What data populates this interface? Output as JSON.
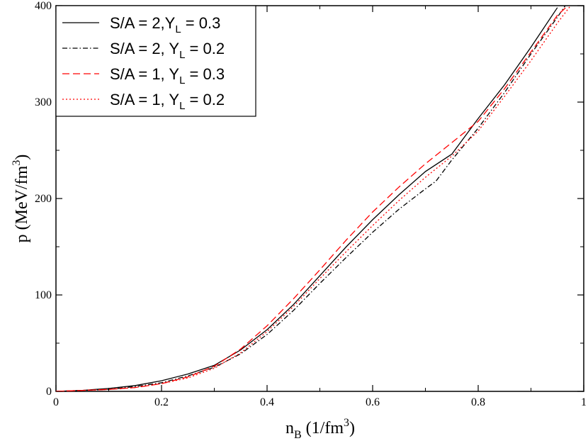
{
  "chart_data": {
    "type": "line",
    "xlabel": {
      "main": "n",
      "sub": "B",
      "rest": " (1/fm",
      "sup": "3",
      "close": ")"
    },
    "ylabel": {
      "main": "p (MeV/fm",
      "sup": "3",
      "close": ")"
    },
    "xlim": [
      0,
      1
    ],
    "ylim": [
      0,
      400
    ],
    "xticks": [
      "0",
      "0.2",
      "0.4",
      "0.6",
      "0.8",
      "1"
    ],
    "yticks": [
      "0",
      "100",
      "200",
      "300",
      "400"
    ],
    "legend_position": "top-left",
    "series": [
      {
        "legend": {
          "a": "S/A = 2,Y",
          "sub": "L",
          "b": " = 0.3"
        },
        "color": "#000000",
        "dash": "solid",
        "x": [
          0.0,
          0.05,
          0.1,
          0.15,
          0.2,
          0.25,
          0.3,
          0.35,
          0.4,
          0.45,
          0.5,
          0.55,
          0.6,
          0.65,
          0.7,
          0.75,
          0.8,
          0.85,
          0.9,
          0.95
        ],
        "y": [
          0,
          1,
          3,
          6,
          11,
          18,
          27,
          43,
          64,
          90,
          120,
          150,
          178,
          204,
          228,
          246,
          283,
          318,
          357,
          398
        ]
      },
      {
        "legend": {
          "a": "S/A = 2, Y",
          "sub": "L",
          "b": " = 0.2"
        },
        "color": "#000000",
        "dash": "dashdot",
        "x": [
          0.0,
          0.05,
          0.1,
          0.15,
          0.2,
          0.25,
          0.3,
          0.35,
          0.4,
          0.45,
          0.5,
          0.55,
          0.6,
          0.65,
          0.7,
          0.72,
          0.75,
          0.8,
          0.85,
          0.9,
          0.95,
          0.965
        ],
        "y": [
          0,
          1,
          2,
          5,
          9,
          16,
          25,
          39,
          59,
          84,
          112,
          139,
          165,
          189,
          210,
          218,
          240,
          273,
          310,
          350,
          388,
          400
        ]
      },
      {
        "legend": {
          "a": "S/A = 1, Y",
          "sub": "L",
          "b": " = 0.3"
        },
        "color": "#ff0000",
        "dash": "dashed",
        "x": [
          0.0,
          0.05,
          0.1,
          0.15,
          0.2,
          0.25,
          0.3,
          0.35,
          0.4,
          0.45,
          0.5,
          0.55,
          0.6,
          0.65,
          0.7,
          0.75,
          0.8,
          0.85,
          0.9,
          0.95,
          0.97
        ],
        "y": [
          0,
          1,
          2,
          4,
          8,
          15,
          26,
          44,
          68,
          96,
          126,
          157,
          186,
          212,
          236,
          258,
          280,
          314,
          352,
          390,
          400
        ]
      },
      {
        "legend": {
          "a": "S/A = 1, Y",
          "sub": "L",
          "b": " = 0.2"
        },
        "color": "#ff0000",
        "dash": "dotted",
        "x": [
          0.0,
          0.05,
          0.1,
          0.15,
          0.2,
          0.25,
          0.3,
          0.35,
          0.4,
          0.45,
          0.5,
          0.55,
          0.6,
          0.65,
          0.7,
          0.75,
          0.8,
          0.85,
          0.9,
          0.95,
          0.975
        ],
        "y": [
          0,
          1,
          2,
          4,
          8,
          14,
          24,
          40,
          62,
          88,
          117,
          145,
          172,
          198,
          222,
          244,
          270,
          306,
          343,
          382,
          400
        ]
      }
    ]
  }
}
